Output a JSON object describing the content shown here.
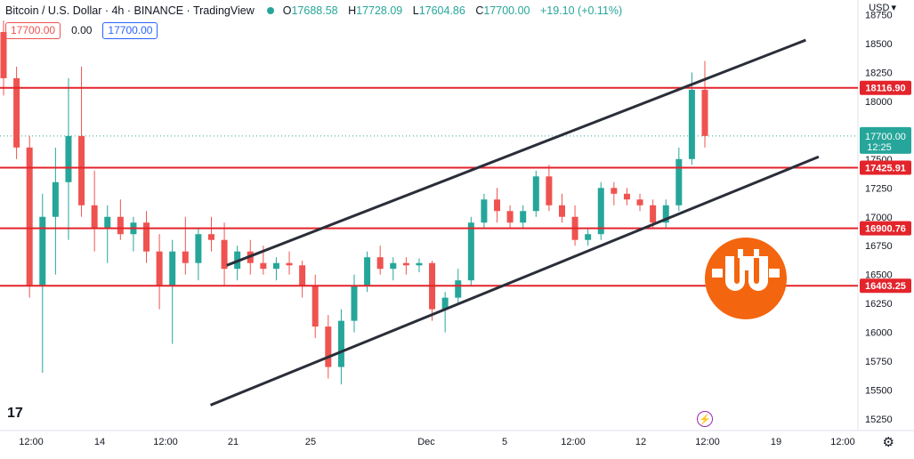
{
  "header": {
    "symbol": "Bitcoin / U.S. Dollar · 4h · BINANCE · TradingView",
    "o_label": "O",
    "o": "17688.58",
    "h_label": "H",
    "h": "17728.09",
    "l_label": "L",
    "l": "17604.86",
    "c_label": "C",
    "c": "17700.00",
    "change": "+19.10 (+0.11%)"
  },
  "pricebox": {
    "sell": "17700.00",
    "spread": "0.00",
    "buy": "17700.00"
  },
  "currency": "USD",
  "colors": {
    "up": "#26a69a",
    "down": "#ef5350",
    "level_line": "#e3242b",
    "channel": "#2a2e39",
    "badge_orange": "#f4650f"
  },
  "chart_data": {
    "type": "candlestick",
    "timeframe": "4h",
    "y_range": [
      15150,
      18800
    ],
    "y_ticks": [
      15250,
      15500,
      15750,
      16000,
      16250,
      16500,
      16750,
      17000,
      17250,
      17500,
      17750,
      18000,
      18250,
      18500,
      18750
    ],
    "x_ticks": [
      "12:00",
      "14",
      "12:00",
      "21",
      "25",
      "Dec",
      "5",
      "12:00",
      "12",
      "12:00",
      "19",
      "12:00"
    ],
    "current_price": {
      "value": "17700.00",
      "countdown": "12:25"
    },
    "horizontal_levels": [
      {
        "value": "18116.90"
      },
      {
        "value": "17425.91"
      },
      {
        "value": "16900.76"
      },
      {
        "value": "16403.25"
      }
    ],
    "channel": {
      "upper": [
        {
          "x": "Nov 20 16:00",
          "y": 16580
        },
        {
          "x": "Dec 20 12:00",
          "y": 18530
        }
      ],
      "lower": [
        {
          "x": "Nov 19 20:00",
          "y": 15370
        },
        {
          "x": "Dec 21 04:00",
          "y": 17520
        }
      ]
    },
    "candles_approx": [
      [
        18600,
        18700,
        18050,
        18200
      ],
      [
        18200,
        18300,
        17500,
        17600
      ],
      [
        17600,
        17700,
        16300,
        16400
      ],
      [
        16400,
        17200,
        15650,
        17000
      ],
      [
        17000,
        17600,
        16500,
        17300
      ],
      [
        17300,
        18200,
        16800,
        17700
      ],
      [
        17700,
        18300,
        17000,
        17100
      ],
      [
        17100,
        17400,
        16700,
        16900
      ],
      [
        16900,
        17100,
        16600,
        17000
      ],
      [
        17000,
        17150,
        16800,
        16850
      ],
      [
        16850,
        17000,
        16700,
        16950
      ],
      [
        16950,
        17050,
        16600,
        16700
      ],
      [
        16700,
        16850,
        16200,
        16400
      ],
      [
        16400,
        16800,
        15900,
        16700
      ],
      [
        16700,
        17000,
        16500,
        16600
      ],
      [
        16600,
        16900,
        16450,
        16850
      ],
      [
        16850,
        17000,
        16700,
        16800
      ],
      [
        16800,
        16950,
        16400,
        16550
      ],
      [
        16550,
        16750,
        16450,
        16700
      ],
      [
        16700,
        16800,
        16500,
        16600
      ],
      [
        16600,
        16750,
        16500,
        16550
      ],
      [
        16550,
        16650,
        16450,
        16600
      ],
      [
        16600,
        16700,
        16500,
        16580
      ],
      [
        16580,
        16620,
        16300,
        16400
      ],
      [
        16400,
        16500,
        15950,
        16050
      ],
      [
        16050,
        16150,
        15600,
        15700
      ],
      [
        15700,
        16200,
        15550,
        16100
      ],
      [
        16100,
        16500,
        16000,
        16400
      ],
      [
        16400,
        16700,
        16350,
        16650
      ],
      [
        16650,
        16750,
        16500,
        16550
      ],
      [
        16550,
        16650,
        16450,
        16600
      ],
      [
        16600,
        16650,
        16500,
        16580
      ],
      [
        16580,
        16640,
        16520,
        16600
      ],
      [
        16600,
        16620,
        16100,
        16200
      ],
      [
        16200,
        16350,
        16000,
        16300
      ],
      [
        16300,
        16550,
        16250,
        16450
      ],
      [
        16450,
        17000,
        16400,
        16950
      ],
      [
        16950,
        17200,
        16900,
        17150
      ],
      [
        17150,
        17250,
        16950,
        17050
      ],
      [
        17050,
        17100,
        16900,
        16950
      ],
      [
        16950,
        17100,
        16900,
        17050
      ],
      [
        17050,
        17400,
        17000,
        17350
      ],
      [
        17350,
        17450,
        17050,
        17100
      ],
      [
        17100,
        17200,
        16950,
        17000
      ],
      [
        17000,
        17100,
        16750,
        16800
      ],
      [
        16800,
        16900,
        16750,
        16850
      ],
      [
        16850,
        17300,
        16800,
        17250
      ],
      [
        17250,
        17300,
        17100,
        17200
      ],
      [
        17200,
        17250,
        17100,
        17150
      ],
      [
        17150,
        17200,
        17050,
        17100
      ],
      [
        17100,
        17150,
        16900,
        16950
      ],
      [
        16950,
        17150,
        16900,
        17100
      ],
      [
        17100,
        17600,
        17050,
        17500
      ],
      [
        17500,
        18250,
        17450,
        18100
      ],
      [
        18100,
        18350,
        17600,
        17700
      ]
    ]
  }
}
